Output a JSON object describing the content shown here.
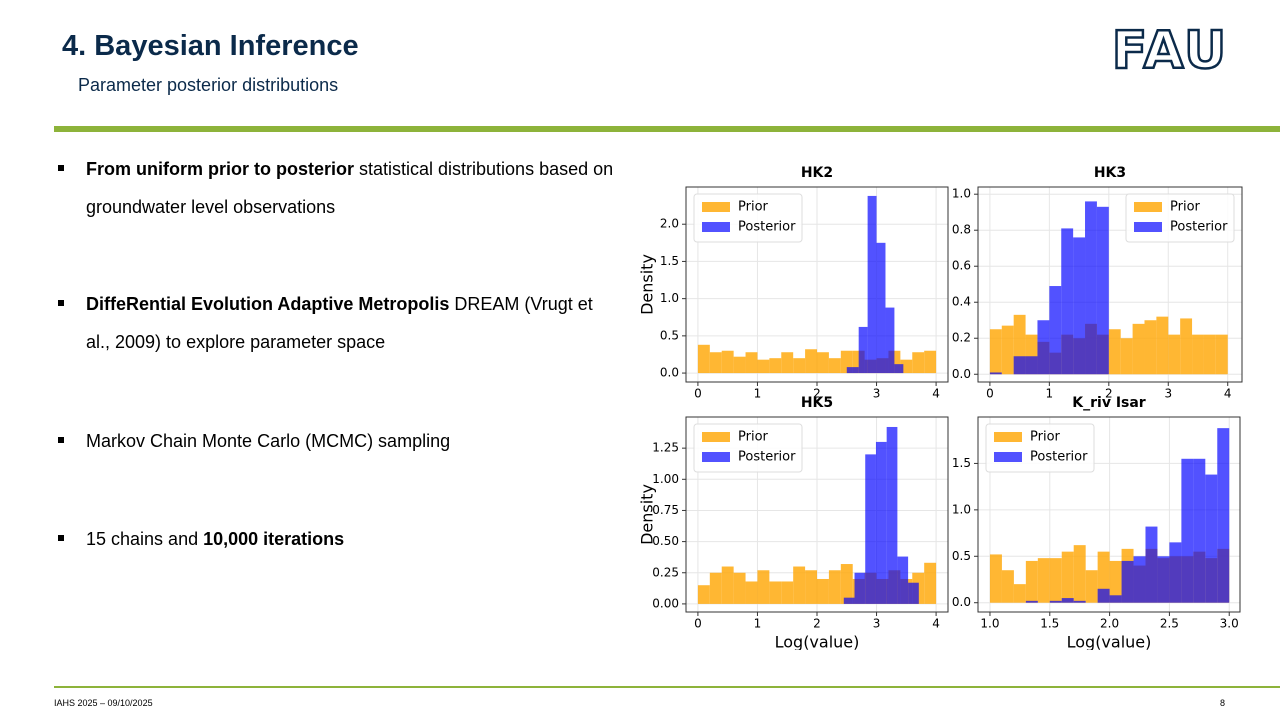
{
  "header": {
    "title": "4. Bayesian Inference",
    "subtitle": "Parameter posterior distributions"
  },
  "logo": "FAU",
  "bullets": [
    [
      {
        "text": "From uniform prior to posterior",
        "bold": true
      },
      {
        "text": " statistical distributions based on groundwater level observations"
      }
    ],
    [
      {
        "text": "DiffeRential Evolution Adaptive Metropolis",
        "bold": true
      },
      {
        "text": " DREAM (Vrugt et al., 2009) to explore parameter space"
      }
    ],
    [
      {
        "text": "Markov Chain Monte Carlo (MCMC) sampling"
      }
    ],
    [
      {
        "text": "15 chains and "
      },
      {
        "text": "10,000 iterations",
        "bold": true
      }
    ]
  ],
  "footer": {
    "left": "IAHS 2025 – 09/10/2025",
    "page": "8"
  },
  "chart_data": [
    {
      "type": "histogram",
      "title": "HK2",
      "ylabel": "Density",
      "legend": "upper left",
      "grid": true,
      "xlim": [
        -0.2,
        4.2
      ],
      "ylim": [
        -0.12,
        2.5
      ],
      "xticks": [
        0,
        1,
        2,
        3,
        4
      ],
      "yticks": [
        {
          "value": 0,
          "label": "0.0"
        },
        0.5,
        {
          "value": 1,
          "label": "1.0"
        },
        1.5,
        {
          "value": 2,
          "label": "2.0"
        }
      ],
      "series": [
        {
          "name": "Prior",
          "color": "#FFA500",
          "bins": [
            0,
            0.2,
            0.4,
            0.6,
            0.8,
            1,
            1.2,
            1.4,
            1.6,
            1.8,
            2,
            2.2,
            2.4,
            2.6,
            2.8,
            3,
            3.2,
            3.4,
            3.6,
            3.8,
            4
          ],
          "values": [
            0.38,
            0.28,
            0.3,
            0.22,
            0.28,
            0.18,
            0.2,
            0.28,
            0.2,
            0.32,
            0.28,
            0.2,
            0.3,
            0.3,
            0.18,
            0.2,
            0.3,
            0.18,
            0.28,
            0.3
          ]
        },
        {
          "name": "Posterior",
          "color": "#0000FF",
          "bins": [
            2.5,
            2.7,
            2.85,
            3,
            3.15,
            3.3,
            3.45
          ],
          "values": [
            0.08,
            0.62,
            2.38,
            1.75,
            0.88,
            0.12
          ]
        }
      ]
    },
    {
      "type": "histogram",
      "title": "HK3",
      "legend": "upper right",
      "grid": true,
      "xlim": [
        -0.2,
        4.24
      ],
      "ylim": [
        -0.043,
        1.04
      ],
      "xticks": [
        0,
        1,
        2,
        3,
        4
      ],
      "yticks": [
        {
          "value": 0,
          "label": "0.0"
        },
        0.2,
        0.4,
        0.6,
        0.8,
        {
          "value": 1,
          "label": "1.0"
        }
      ],
      "series": [
        {
          "name": "Prior",
          "color": "#FFA500",
          "bins": [
            0,
            0.2,
            0.4,
            0.6,
            0.8,
            1,
            1.2,
            1.4,
            1.6,
            1.8,
            2,
            2.2,
            2.4,
            2.6,
            2.8,
            3,
            3.2,
            3.4,
            3.6,
            3.8,
            4
          ],
          "values": [
            0.25,
            0.27,
            0.33,
            0.22,
            0.18,
            0.12,
            0.22,
            0.2,
            0.28,
            0.22,
            0.25,
            0.2,
            0.28,
            0.3,
            0.32,
            0.22,
            0.31,
            0.22,
            0.22,
            0.22
          ]
        },
        {
          "name": "Posterior",
          "color": "#0000FF",
          "bins": [
            0,
            0.2,
            0.4,
            0.6,
            0.8,
            1,
            1.2,
            1.4,
            1.6,
            1.8,
            2
          ],
          "values": [
            0.01,
            0,
            0.1,
            0.1,
            0.3,
            0.49,
            0.81,
            0.76,
            0.96,
            0.93
          ]
        }
      ]
    },
    {
      "type": "histogram",
      "title": "HK5",
      "ylabel": "Density",
      "xlabel": "Log(value)",
      "legend": "upper left",
      "grid": true,
      "xlim": [
        -0.2,
        4.2
      ],
      "ylim": [
        -0.065,
        1.5
      ],
      "xticks": [
        0,
        1,
        2,
        3,
        4
      ],
      "yticks": [
        {
          "value": 0,
          "label": "0.00"
        },
        0.25,
        {
          "value": 0.5,
          "label": "0.50"
        },
        0.75,
        {
          "value": 1,
          "label": "1.00"
        },
        1.25
      ],
      "series": [
        {
          "name": "Prior",
          "color": "#FFA500",
          "bins": [
            0,
            0.2,
            0.4,
            0.6,
            0.8,
            1,
            1.2,
            1.4,
            1.6,
            1.8,
            2,
            2.2,
            2.4,
            2.6,
            2.8,
            3,
            3.2,
            3.4,
            3.6,
            3.8,
            4
          ],
          "values": [
            0.15,
            0.25,
            0.3,
            0.25,
            0.18,
            0.27,
            0.18,
            0.18,
            0.3,
            0.27,
            0.2,
            0.27,
            0.32,
            0.2,
            0.25,
            0.2,
            0.27,
            0.2,
            0.25,
            0.33
          ]
        },
        {
          "name": "Posterior",
          "color": "#0000FF",
          "bins": [
            2.45,
            2.63,
            2.81,
            2.99,
            3.17,
            3.35,
            3.53,
            3.71
          ],
          "values": [
            0.05,
            0.25,
            1.2,
            1.3,
            1.42,
            0.38,
            0.17
          ]
        }
      ]
    },
    {
      "type": "histogram",
      "title": "K_riv Isar",
      "xlabel": "Log(value)",
      "legend": "upper left",
      "grid": true,
      "xlim": [
        0.9,
        3.09
      ],
      "ylim": [
        -0.1,
        2
      ],
      "xticks": [
        {
          "value": 1,
          "label": "1.0"
        },
        1.5,
        {
          "value": 2,
          "label": "2.0"
        },
        2.5,
        {
          "value": 3,
          "label": "3.0"
        }
      ],
      "yticks": [
        {
          "value": 0,
          "label": "0.0"
        },
        0.5,
        {
          "value": 1,
          "label": "1.0"
        },
        1.5
      ],
      "series": [
        {
          "name": "Prior",
          "color": "#FFA500",
          "bins": [
            1,
            1.1,
            1.2,
            1.3,
            1.4,
            1.5,
            1.6,
            1.7,
            1.8,
            1.9,
            2,
            2.1,
            2.2,
            2.3,
            2.4,
            2.5,
            2.6,
            2.7,
            2.8,
            2.9,
            3
          ],
          "values": [
            0.52,
            0.35,
            0.2,
            0.45,
            0.48,
            0.48,
            0.55,
            0.62,
            0.35,
            0.55,
            0.45,
            0.58,
            0.4,
            0.58,
            0.48,
            0.5,
            0.5,
            0.55,
            0.48,
            0.58
          ]
        },
        {
          "name": "Posterior",
          "color": "#0000FF",
          "bins": [
            1,
            1.1,
            1.2,
            1.3,
            1.4,
            1.5,
            1.6,
            1.7,
            1.8,
            1.9,
            2,
            2.1,
            2.2,
            2.3,
            2.4,
            2.5,
            2.6,
            2.7,
            2.8,
            2.9,
            3
          ],
          "values": [
            0,
            0,
            0,
            0.02,
            0,
            0.02,
            0.05,
            0.02,
            0,
            0.15,
            0.08,
            0.45,
            0.5,
            0.82,
            0.5,
            0.65,
            1.55,
            1.55,
            1.38,
            1.88
          ]
        }
      ]
    }
  ]
}
